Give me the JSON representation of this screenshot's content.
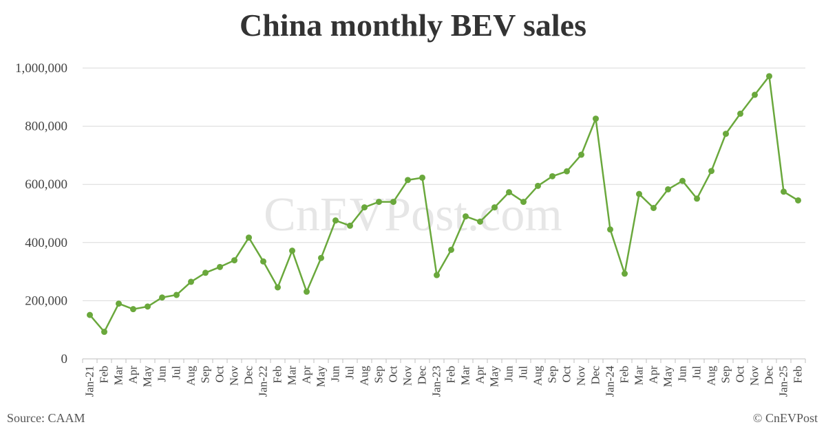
{
  "chart_data": {
    "type": "line",
    "title": "China monthly BEV sales",
    "categories": [
      "Jan-21",
      "Feb",
      "Mar",
      "Apr",
      "May",
      "Jun",
      "Jul",
      "Aug",
      "Sep",
      "Oct",
      "Nov",
      "Dec",
      "Jan-22",
      "Feb",
      "Mar",
      "Apr",
      "May",
      "Jun",
      "Jul",
      "Aug",
      "Sep",
      "Oct",
      "Nov",
      "Dec",
      "Jan-23",
      "Feb",
      "Mar",
      "Apr",
      "May",
      "Jun",
      "Jul",
      "Aug",
      "Sep",
      "Oct",
      "Nov",
      "Dec",
      "Jan-24",
      "Feb",
      "Mar",
      "Apr",
      "May",
      "Jun",
      "Jul",
      "Aug",
      "Sep",
      "Oct",
      "Nov",
      "Dec",
      "Jan-25",
      "Feb"
    ],
    "series": [
      {
        "values": [
          151000,
          93000,
          190000,
          171000,
          180000,
          211000,
          220000,
          265000,
          296000,
          316000,
          339000,
          417000,
          335000,
          246000,
          372000,
          231000,
          347000,
          476000,
          458000,
          521000,
          540000,
          540000,
          615000,
          623000,
          288000,
          375000,
          490000,
          472000,
          521000,
          573000,
          540000,
          595000,
          628000,
          645000,
          702000,
          826000,
          445000,
          293000,
          567000,
          519000,
          583000,
          612000,
          551000,
          646000,
          774000,
          843000,
          908000,
          972000,
          575000,
          545000
        ]
      }
    ],
    "yticks": [
      "1,000,000",
      "800,000",
      "600,000",
      "400,000",
      "200,000",
      "0"
    ],
    "ylim": [
      0,
      1000000
    ],
    "grid": true,
    "legend": "none",
    "color": "#6aa83c"
  },
  "footer": {
    "source": "Source: CAAM",
    "copyright": "© CnEVPost"
  },
  "watermark": "CnEVPost.com"
}
